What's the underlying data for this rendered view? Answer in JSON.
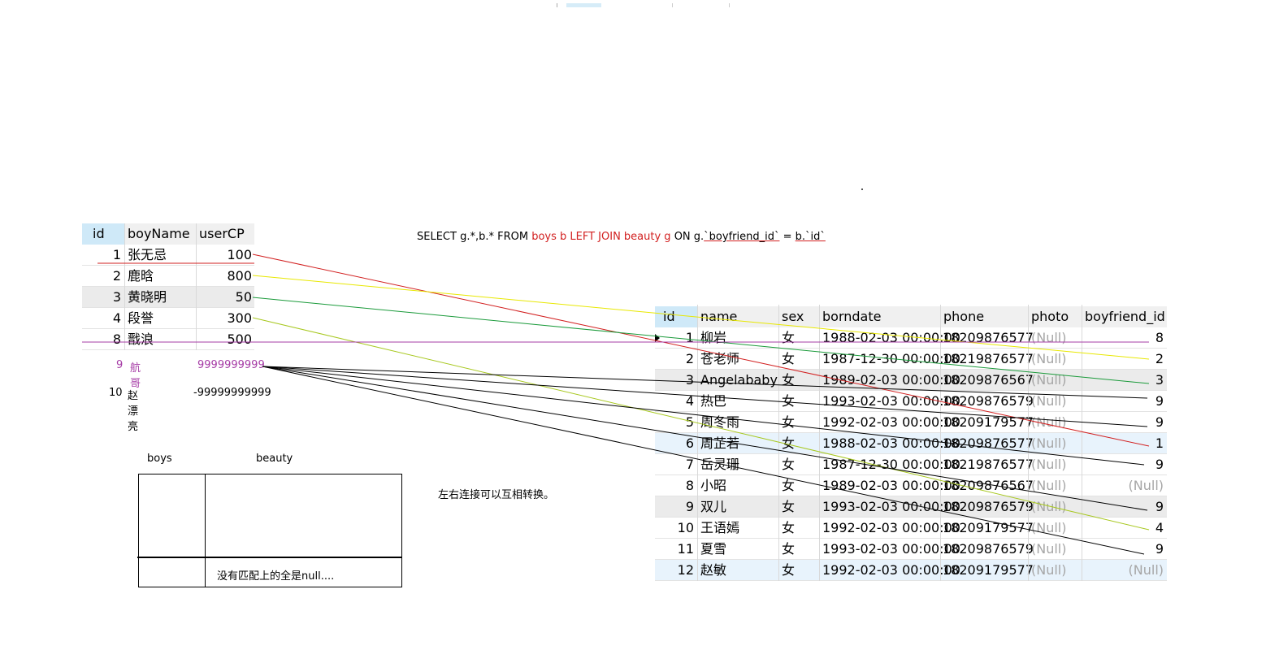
{
  "sql": {
    "select": "SELECT g.*,b.* FROM ",
    "from_table": "boys b LEFT  JOIN beauty g",
    "on": " ON g.",
    "col1": "`boyfriend_id`",
    "eq": " = ",
    "col2": "b.`id`"
  },
  "boys_table": {
    "headers": [
      "id",
      "boyName",
      "userCP"
    ],
    "rows": [
      {
        "id": "1",
        "boyName": "张无忌",
        "userCP": "100"
      },
      {
        "id": "2",
        "boyName": "鹿晗",
        "userCP": "800"
      },
      {
        "id": "3",
        "boyName": "黄晓明",
        "userCP": "50"
      },
      {
        "id": "4",
        "boyName": "段誉",
        "userCP": "300"
      },
      {
        "id": "8",
        "boyName": "戬浪",
        "userCP": "500"
      }
    ],
    "extra_rows": [
      {
        "id": "9",
        "boyName": "航哥",
        "userCP": "9999999999",
        "color": "#a63ca6"
      },
      {
        "id": "10",
        "boyName": "赵漂亮",
        "userCP": "-99999999999",
        "color": "#000000"
      }
    ]
  },
  "beauty_table": {
    "headers": [
      "id",
      "name",
      "sex",
      "borndate",
      "phone",
      "photo",
      "boyfriend_id"
    ],
    "rows": [
      {
        "id": "1",
        "name": "柳岩",
        "sex": "女",
        "borndate": "1988-02-03 00:00:00",
        "phone": "18209876577",
        "photo": "(Null)",
        "boyfriend_id": "8"
      },
      {
        "id": "2",
        "name": "苍老师",
        "sex": "女",
        "borndate": "1987-12-30 00:00:00",
        "phone": "18219876577",
        "photo": "(Null)",
        "boyfriend_id": "2"
      },
      {
        "id": "3",
        "name": "Angelababy",
        "sex": "女",
        "borndate": "1989-02-03 00:00:00",
        "phone": "18209876567",
        "photo": "(Null)",
        "boyfriend_id": "3"
      },
      {
        "id": "4",
        "name": "热巴",
        "sex": "女",
        "borndate": "1993-02-03 00:00:00",
        "phone": "18209876579",
        "photo": "(Null)",
        "boyfriend_id": "9"
      },
      {
        "id": "5",
        "name": "周冬雨",
        "sex": "女",
        "borndate": "1992-02-03 00:00:00",
        "phone": "18209179577",
        "photo": "(Null)",
        "boyfriend_id": "9"
      },
      {
        "id": "6",
        "name": "周芷若",
        "sex": "女",
        "borndate": "1988-02-03 00:00:00",
        "phone": "18209876577",
        "photo": "(Null)",
        "boyfriend_id": "1"
      },
      {
        "id": "7",
        "name": "岳灵珊",
        "sex": "女",
        "borndate": "1987-12-30 00:00:00",
        "phone": "18219876577",
        "photo": "(Null)",
        "boyfriend_id": "9"
      },
      {
        "id": "8",
        "name": "小昭",
        "sex": "女",
        "borndate": "1989-02-03 00:00:00",
        "phone": "18209876567",
        "photo": "(Null)",
        "boyfriend_id": "(Null)"
      },
      {
        "id": "9",
        "name": "双儿",
        "sex": "女",
        "borndate": "1993-02-03 00:00:00",
        "phone": "18209876579",
        "photo": "(Null)",
        "boyfriend_id": "9"
      },
      {
        "id": "10",
        "name": "王语嫣",
        "sex": "女",
        "borndate": "1992-02-03 00:00:00",
        "phone": "18209179577",
        "photo": "(Null)",
        "boyfriend_id": "4"
      },
      {
        "id": "11",
        "name": "夏雪",
        "sex": "女",
        "borndate": "1993-02-03 00:00:00",
        "phone": "18209876579",
        "photo": "(Null)",
        "boyfriend_id": "9"
      },
      {
        "id": "12",
        "name": "赵敏",
        "sex": "女",
        "borndate": "1992-02-03 00:00:00",
        "phone": "18209179577",
        "photo": "(Null)",
        "boyfriend_id": "(Null)"
      }
    ]
  },
  "venn": {
    "left_label": "boys",
    "right_label": "beauty",
    "note": "没有匹配上的全是null...."
  },
  "note_convert": "左右连接可以互相转换。",
  "colors": {
    "red": "#d22020",
    "yellow": "#e8e800",
    "green": "#1a9a3a",
    "olive": "#a8c820",
    "purple": "#a63ca6",
    "black": "#000000"
  }
}
